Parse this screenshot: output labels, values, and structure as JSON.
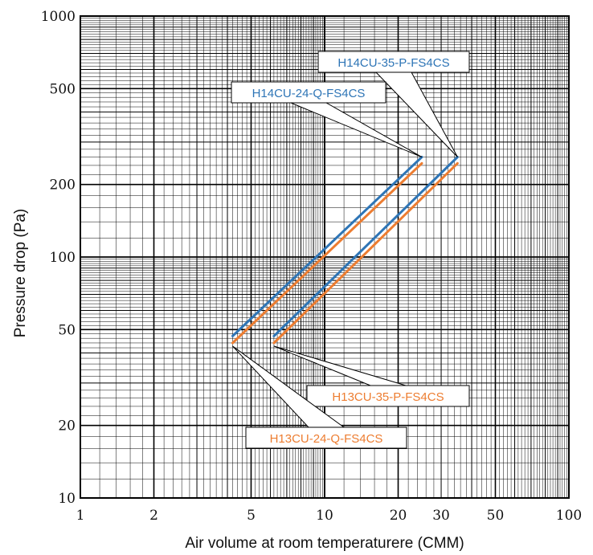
{
  "chart_data": {
    "type": "line",
    "title": "",
    "xlabel": "Air volume at room temperaturere (CMM)",
    "ylabel": "Pressure drop (Pa)",
    "xscale": "log",
    "yscale": "log",
    "xlim": [
      1,
      100
    ],
    "ylim": [
      10,
      1000
    ],
    "grid": true,
    "x_tick_labels": [
      "1",
      "2",
      "5",
      "10",
      "20",
      "30",
      "50",
      "100"
    ],
    "y_tick_labels": [
      "10",
      "20",
      "50",
      "100",
      "200",
      "500",
      "1000"
    ],
    "series": [
      {
        "name": "H14CU-24-Q-FS4CS",
        "color": "#2e75b6",
        "x": [
          4.2,
          25
        ],
        "y": [
          47,
          260
        ]
      },
      {
        "name": "H13CU-24-Q-FS4CS",
        "color": "#ed7d31",
        "x": [
          4.2,
          25
        ],
        "y": [
          44,
          245
        ]
      },
      {
        "name": "H14CU-35-P-FS4CS",
        "color": "#2e75b6",
        "x": [
          6.2,
          35
        ],
        "y": [
          47,
          260
        ]
      },
      {
        "name": "H13CU-35-P-FS4CS",
        "color": "#ed7d31",
        "x": [
          6.2,
          35
        ],
        "y": [
          44,
          245
        ]
      }
    ],
    "annotations": [
      {
        "text": "H14CU-35-P-FS4CS",
        "color": "#2e75b6",
        "series": 2,
        "at": "end"
      },
      {
        "text": "H14CU-24-Q-FS4CS",
        "color": "#2e75b6",
        "series": 0,
        "at": "end"
      },
      {
        "text": "H13CU-35-P-FS4CS",
        "color": "#ed7d31",
        "series": 3,
        "at": "start"
      },
      {
        "text": "H13CU-24-Q-FS4CS",
        "color": "#ed7d31",
        "series": 1,
        "at": "start"
      }
    ]
  }
}
